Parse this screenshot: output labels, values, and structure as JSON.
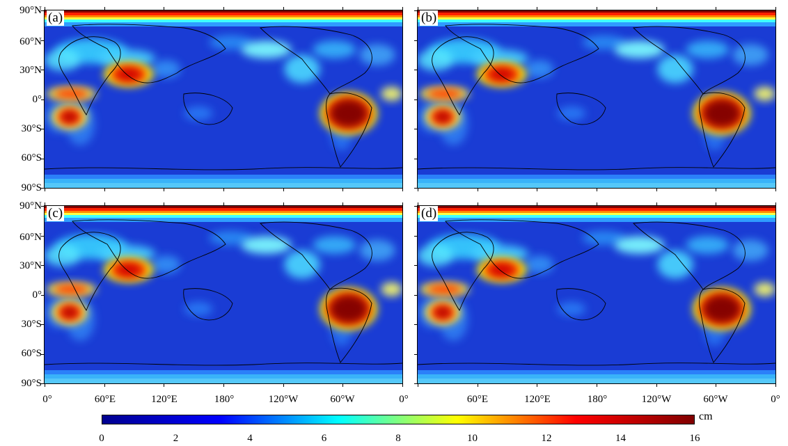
{
  "panels": [
    {
      "id": "a",
      "label": "(a)"
    },
    {
      "id": "b",
      "label": "(b)"
    },
    {
      "id": "c",
      "label": "(c)"
    },
    {
      "id": "d",
      "label": "(d)"
    }
  ],
  "lat_labels": [
    "90°N",
    "60°N",
    "30°N",
    "0°",
    "30°S",
    "60°S",
    "90°S"
  ],
  "lon_labels": [
    "0°",
    "60°E",
    "120°E",
    "180°",
    "120°W",
    "60°W",
    "0°"
  ],
  "colorbar": {
    "unit": "cm",
    "min": 0,
    "max": 16,
    "tick_labels": [
      "0",
      "2",
      "4",
      "6",
      "8",
      "10",
      "12",
      "14",
      "16"
    ],
    "colormap": "jet",
    "colors": [
      "#00008f",
      "#0000ff",
      "#00ffff",
      "#ffff00",
      "#ff0000",
      "#800000"
    ]
  }
}
